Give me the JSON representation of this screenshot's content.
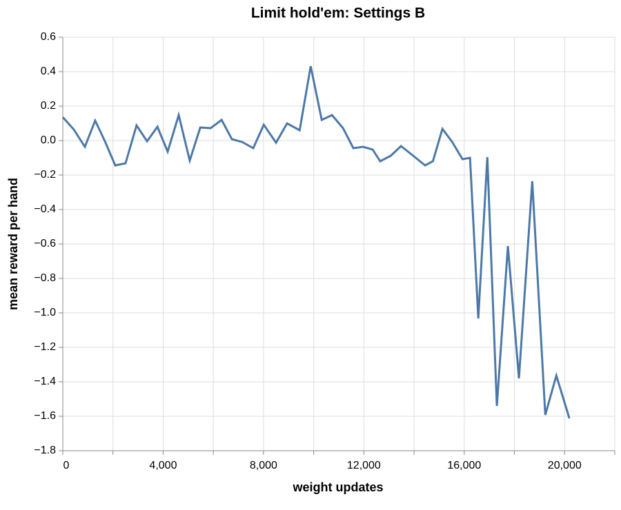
{
  "chart_data": {
    "type": "line",
    "title": "Limit hold'em: Settings B",
    "x_label": "weight updates",
    "y_label": "mean reward per hand",
    "x": [
      0,
      440,
      880,
      1290,
      1680,
      2090,
      2500,
      2940,
      3360,
      3770,
      4180,
      4620,
      5060,
      5480,
      5890,
      6330,
      6740,
      7150,
      7590,
      8010,
      8500,
      8940,
      9440,
      9880,
      10320,
      10730,
      11170,
      11580,
      11970,
      12350,
      12650,
      13070,
      13480,
      14000,
      14440,
      14750,
      15130,
      15520,
      15930,
      16230,
      16560,
      16920,
      17300,
      17740,
      18180,
      18710,
      19230,
      19670,
      20190
    ],
    "series": [
      {
        "name": "mean reward per hand",
        "color": "#4c78a8",
        "values": [
          0.136,
          0.064,
          -0.036,
          0.116,
          -0.004,
          -0.144,
          -0.132,
          0.088,
          -0.004,
          0.08,
          -0.064,
          0.148,
          -0.116,
          0.076,
          0.072,
          0.12,
          0.008,
          -0.008,
          -0.044,
          0.092,
          -0.012,
          0.1,
          0.06,
          0.432,
          0.12,
          0.148,
          0.072,
          -0.044,
          -0.036,
          -0.052,
          -0.12,
          -0.088,
          -0.032,
          -0.092,
          -0.144,
          -0.12,
          0.068,
          -0.008,
          -0.108,
          -0.1,
          -1.032,
          -0.096,
          -1.54,
          -0.612,
          -1.38,
          -0.236,
          -1.592,
          -1.364,
          -1.612
        ]
      }
    ],
    "xlim": [
      0,
      22000
    ],
    "xticks": [
      0,
      {
        "value": 4000,
        "label": "4,000"
      },
      {
        "value": 8000,
        "label": "8,000"
      },
      {
        "value": 12000,
        "label": "12,000"
      },
      {
        "value": 16000,
        "label": "16,000"
      },
      {
        "value": 20000,
        "label": "20,000"
      }
    ],
    "x_minor_ticks": [
      2000,
      6000,
      10000,
      14000,
      18000,
      22000
    ],
    "ylim": [
      -1.8,
      0.6
    ],
    "yticks": [
      0.6,
      0.4,
      0.2,
      {
        "value": 0,
        "label": "0.0"
      },
      {
        "value": -0.2,
        "label": "−0.2"
      },
      {
        "value": -0.4,
        "label": "−0.4"
      },
      {
        "value": -0.6,
        "label": "−0.6"
      },
      {
        "value": -0.8,
        "label": "−0.8"
      },
      {
        "value": -1.0,
        "label": "−1.0"
      },
      {
        "value": -1.2,
        "label": "−1.2"
      },
      {
        "value": -1.4,
        "label": "−1.4"
      },
      {
        "value": -1.6,
        "label": "−1.6"
      },
      {
        "value": -1.8,
        "label": "−1.8"
      }
    ],
    "grid": true
  }
}
